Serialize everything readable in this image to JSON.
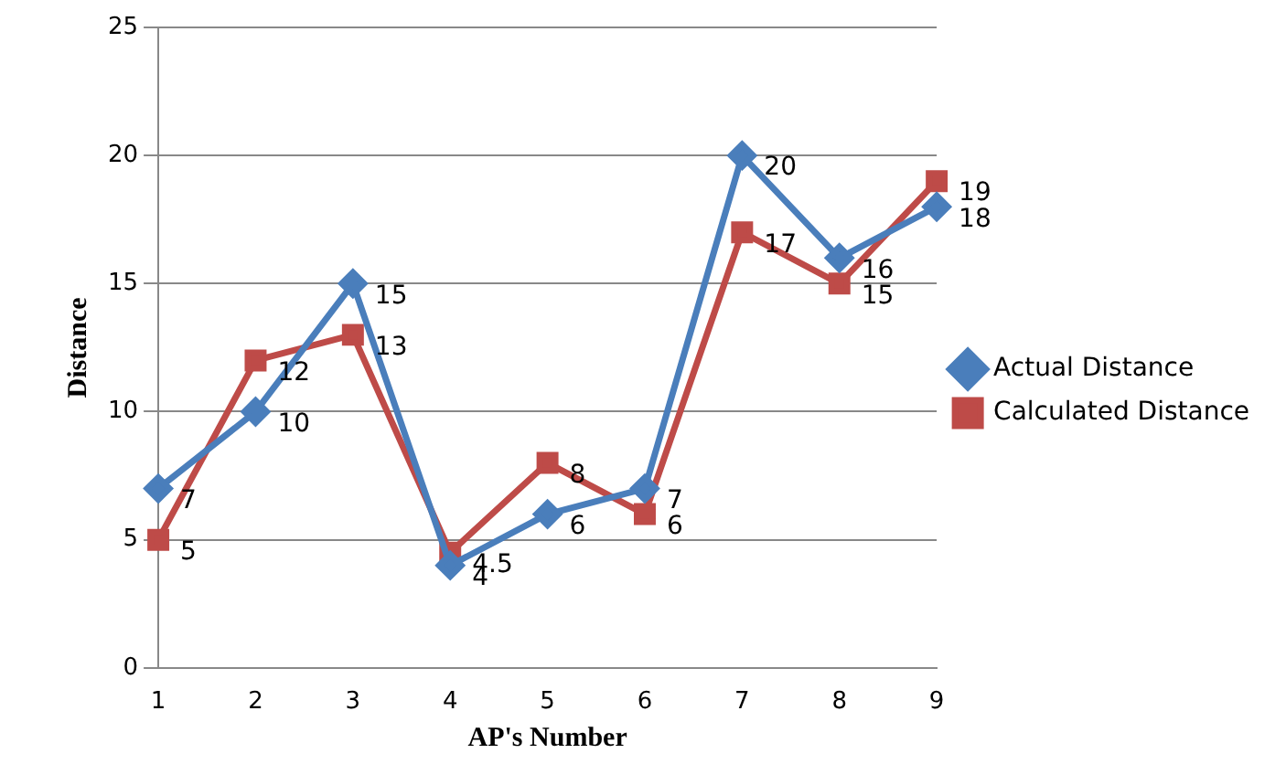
{
  "chart_data": {
    "type": "line",
    "xlabel": "AP's Number",
    "ylabel": "Distance",
    "categories": [
      "1",
      "2",
      "3",
      "4",
      "5",
      "6",
      "7",
      "8",
      "9"
    ],
    "series": [
      {
        "name": "Actual Distance",
        "color": "#4a7ebb",
        "marker": "diamond",
        "values": [
          7,
          10,
          15,
          4,
          6,
          7,
          20,
          16,
          18
        ]
      },
      {
        "name": "Calculated Distance",
        "color": "#be4b48",
        "marker": "square",
        "values": [
          5,
          12,
          13,
          4.5,
          8,
          6,
          17,
          15,
          19
        ]
      }
    ],
    "ylim": [
      0,
      25
    ],
    "yticks": [
      0,
      5,
      10,
      15,
      20,
      25
    ],
    "grid": "y",
    "legend": "right",
    "data_labels": true,
    "line_style": "solid"
  }
}
